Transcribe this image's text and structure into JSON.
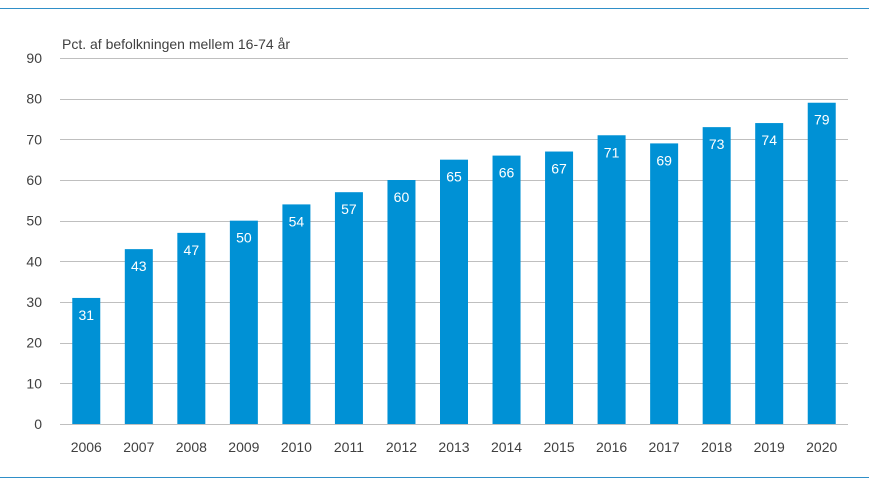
{
  "chart_data": {
    "type": "bar",
    "unit_label": "Pct. af befolkningen  mellem 16-74 år",
    "categories": [
      "2006",
      "2007",
      "2008",
      "2009",
      "2010",
      "2011",
      "2012",
      "2013",
      "2014",
      "2015",
      "2016",
      "2017",
      "2018",
      "2019",
      "2020"
    ],
    "values": [
      31,
      43,
      47,
      50,
      54,
      57,
      60,
      65,
      66,
      67,
      71,
      69,
      73,
      74,
      79
    ],
    "ylim": [
      0,
      90
    ],
    "yticks": [
      0,
      10,
      20,
      30,
      40,
      50,
      60,
      70,
      80,
      90
    ],
    "grid": true,
    "bar_color": "#0091d5",
    "frame_color": "#2f8fc8",
    "grid_color": "#bfbfbf"
  }
}
